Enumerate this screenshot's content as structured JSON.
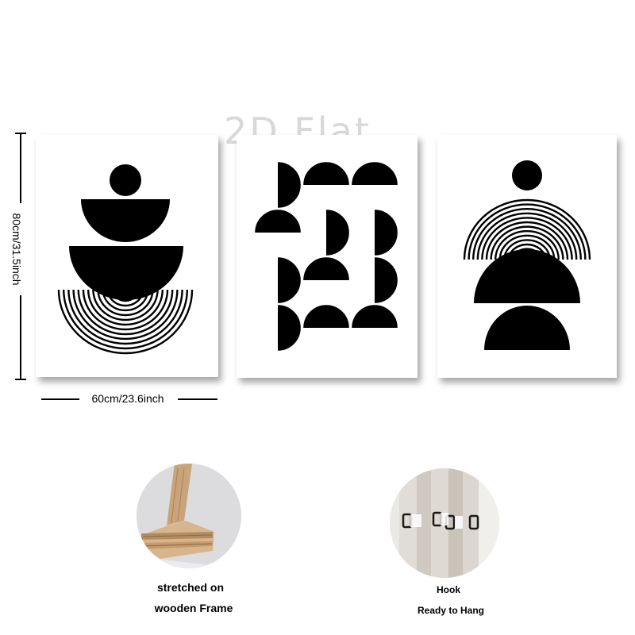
{
  "watermark": "2D Flat",
  "dimensions": {
    "height_label": "80cm/31.5inch",
    "width_label": "60cm/23.6inch"
  },
  "features": [
    {
      "line1": "stretched on",
      "line2": "wooden Frame",
      "icon": "wooden-frame-photo"
    },
    {
      "line1": "Hook",
      "line2": "Ready to Hang",
      "icon": "hook-photo"
    }
  ],
  "colors": {
    "ink": "#000000",
    "canvas": "#ffffff",
    "wood": "#d8b48c"
  }
}
